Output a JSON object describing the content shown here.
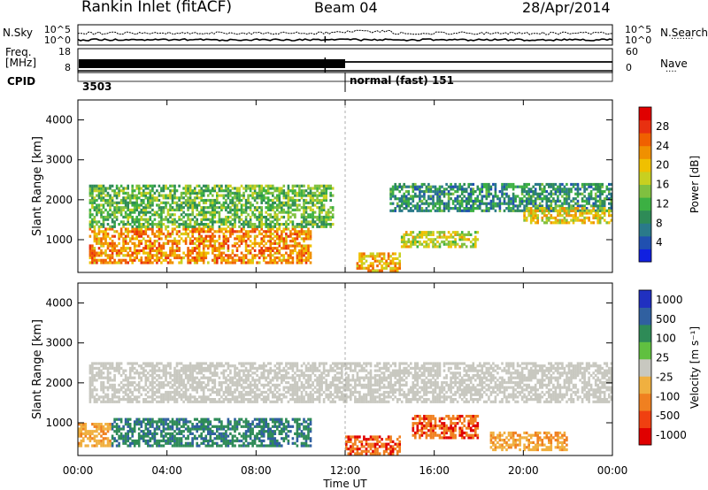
{
  "header": {
    "site": "Rankin Inlet (fitACF)",
    "beam": "Beam 04",
    "date": "28/Apr/2014"
  },
  "strip": {
    "nsky_label": "N.Sky",
    "nsearch_label": "N.Search",
    "freq_label_1": "Freq.",
    "freq_label_2": "[MHz]",
    "nave_label": "Nave",
    "cpid_label": "CPID",
    "noise_ticks_left": [
      "10^5",
      "10^0"
    ],
    "noise_ticks_right": [
      "10^5",
      "10^0"
    ],
    "freq_ticks": [
      "18",
      "8"
    ],
    "nave_ticks": [
      "60",
      "0"
    ],
    "cpid_1": "3503",
    "cpid_2": "normal (fast) 151",
    "legend_dots": "........",
    "nave_dots": "...."
  },
  "chart_data": [
    {
      "type": "heatmap",
      "title": "",
      "xlabel": "Time UT",
      "ylabel": "Slant Range [km]",
      "x_ticks": [
        "00:00",
        "04:00",
        "08:00",
        "12:00",
        "16:00",
        "20:00",
        "00:00"
      ],
      "x_range_hours": [
        0,
        24
      ],
      "y_ticks": [
        1000,
        2000,
        3000,
        4000
      ],
      "y_range_km": [
        180,
        4500
      ],
      "colorbar": {
        "label": "Power [dB]",
        "ticks": [
          4,
          8,
          12,
          16,
          20,
          24,
          28
        ],
        "range": [
          0,
          32
        ],
        "colors": [
          "#1020e0",
          "#2050b0",
          "#2a7a8a",
          "#2e8b57",
          "#3cb043",
          "#80c040",
          "#c8d020",
          "#f0c000",
          "#f09000",
          "#f06000",
          "#e83010",
          "#e00000"
        ]
      },
      "features": [
        {
          "hours": [
            0.5,
            10.5
          ],
          "range_km": [
            400,
            1300
          ],
          "value": 28
        },
        {
          "hours": [
            0.5,
            11.5
          ],
          "range_km": [
            1300,
            2400
          ],
          "value": 18
        },
        {
          "hours": [
            12.5,
            14.5
          ],
          "range_km": [
            200,
            700
          ],
          "value": 26
        },
        {
          "hours": [
            14.5,
            18.0
          ],
          "range_km": [
            800,
            1200
          ],
          "value": 22
        },
        {
          "hours": [
            14.0,
            24.0
          ],
          "range_km": [
            1700,
            2400
          ],
          "value": 14
        },
        {
          "hours": [
            20.0,
            24.0
          ],
          "range_km": [
            1400,
            1800
          ],
          "value": 24
        }
      ]
    },
    {
      "type": "heatmap",
      "title": "",
      "xlabel": "Time UT",
      "ylabel": "Slant Range [km]",
      "x_ticks": [
        "00:00",
        "04:00",
        "08:00",
        "12:00",
        "16:00",
        "20:00",
        "00:00"
      ],
      "x_range_hours": [
        0,
        24
      ],
      "y_ticks": [
        1000,
        2000,
        3000,
        4000
      ],
      "y_range_km": [
        180,
        4500
      ],
      "colorbar": {
        "label": "Velocity [m s⁻¹]",
        "ticks": [
          "1000",
          "500",
          "100",
          "25",
          "-25",
          "-100",
          "-500",
          "-1000"
        ],
        "colors": [
          "#2030c0",
          "#3060a0",
          "#2e8b57",
          "#60c040",
          "#c8c8c0",
          "#f0b040",
          "#f08020",
          "#f04010",
          "#e00000"
        ]
      },
      "features": [
        {
          "hours": [
            0.0,
            1.5
          ],
          "range_km": [
            400,
            1000
          ],
          "value": -100
        },
        {
          "hours": [
            1.5,
            10.5
          ],
          "range_km": [
            400,
            1100
          ],
          "value": 100
        },
        {
          "hours": [
            0.5,
            24.0
          ],
          "range_km": [
            1500,
            2500
          ],
          "value": 0
        },
        {
          "hours": [
            12.0,
            14.5
          ],
          "range_km": [
            200,
            700
          ],
          "value": -500
        },
        {
          "hours": [
            15.0,
            18.0
          ],
          "range_km": [
            600,
            1200
          ],
          "value": -500
        },
        {
          "hours": [
            18.5,
            22.0
          ],
          "range_km": [
            300,
            800
          ],
          "value": -100
        }
      ]
    }
  ]
}
